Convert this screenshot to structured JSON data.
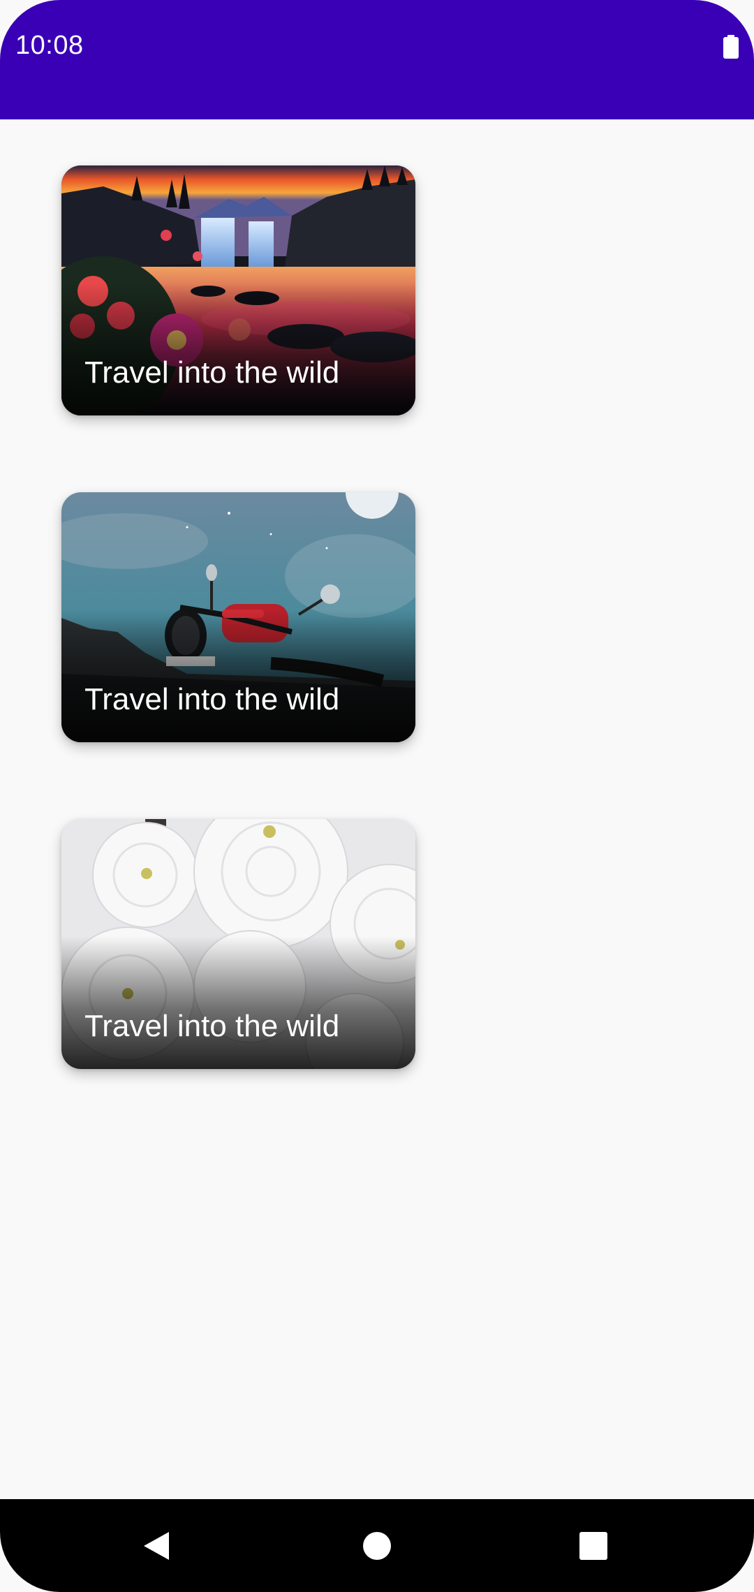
{
  "status_bar": {
    "time": "10:08",
    "battery_icon": "battery-full-icon",
    "color": "#3a00b6"
  },
  "cards": [
    {
      "title": "Travel into the wild",
      "image": "waterfall-sunset-landscape"
    },
    {
      "title": "Travel into the wild",
      "image": "motorcycle-night-sky"
    },
    {
      "title": "Travel into the wild",
      "image": "white-chrysanthemum-flowers"
    }
  ],
  "navigation_bar": {
    "back_icon": "back-triangle-icon",
    "home_icon": "home-circle-icon",
    "recents_icon": "recents-square-icon"
  }
}
